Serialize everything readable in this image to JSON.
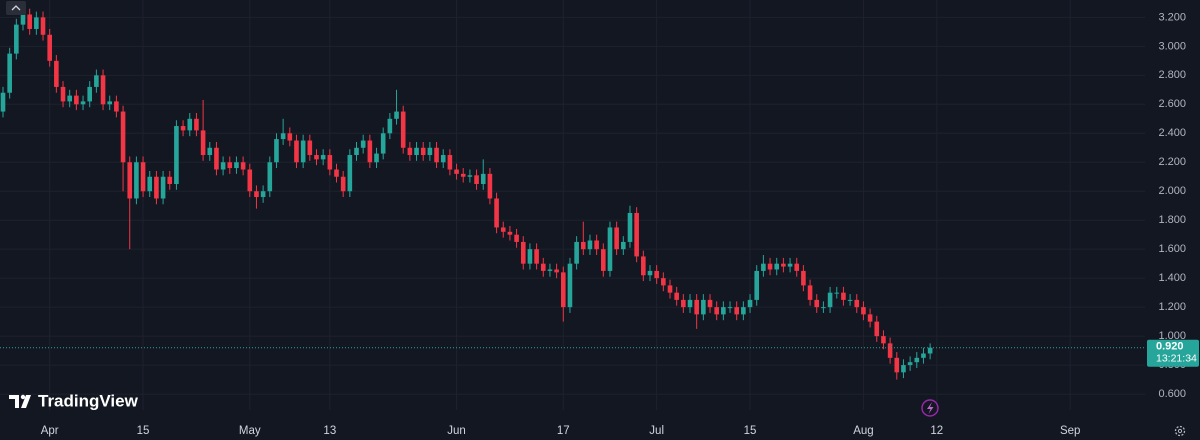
{
  "chart_data": {
    "type": "candlestick",
    "x": [
      "Mar 25",
      "Mar 26",
      "Mar 27",
      "Mar 28",
      "Mar 29",
      "Mar 30",
      "Mar 31",
      "Apr 1",
      "Apr 2",
      "Apr 3",
      "Apr 4",
      "Apr 5",
      "Apr 6",
      "Apr 7",
      "Apr 8",
      "Apr 9",
      "Apr 10",
      "Apr 11",
      "Apr 12",
      "Apr 13",
      "Apr 14",
      "Apr 15",
      "Apr 16",
      "Apr 17",
      "Apr 18",
      "Apr 19",
      "Apr 20",
      "Apr 21",
      "Apr 22",
      "Apr 23",
      "Apr 24",
      "Apr 25",
      "Apr 26",
      "Apr 27",
      "Apr 28",
      "Apr 29",
      "Apr 30",
      "May 1",
      "May 2",
      "May 3",
      "May 4",
      "May 5",
      "May 6",
      "May 7",
      "May 8",
      "May 9",
      "May 10",
      "May 11",
      "May 12",
      "May 13",
      "May 14",
      "May 15",
      "May 16",
      "May 17",
      "May 18",
      "May 19",
      "May 20",
      "May 21",
      "May 22",
      "May 23",
      "May 24",
      "May 25",
      "May 26",
      "May 27",
      "May 28",
      "May 29",
      "May 30",
      "May 31",
      "Jun 1",
      "Jun 2",
      "Jun 3",
      "Jun 4",
      "Jun 5",
      "Jun 6",
      "Jun 7",
      "Jun 8",
      "Jun 9",
      "Jun 10",
      "Jun 11",
      "Jun 12",
      "Jun 13",
      "Jun 14",
      "Jun 15",
      "Jun 16",
      "Jun 17",
      "Jun 18",
      "Jun 19",
      "Jun 20",
      "Jun 21",
      "Jun 22",
      "Jun 23",
      "Jun 24",
      "Jun 25",
      "Jun 26",
      "Jun 27",
      "Jun 28",
      "Jun 29",
      "Jun 30",
      "Jul 1",
      "Jul 2",
      "Jul 3",
      "Jul 4",
      "Jul 5",
      "Jul 6",
      "Jul 7",
      "Jul 8",
      "Jul 9",
      "Jul 10",
      "Jul 11",
      "Jul 12",
      "Jul 13",
      "Jul 14",
      "Jul 15",
      "Jul 16",
      "Jul 17",
      "Jul 18",
      "Jul 19",
      "Jul 20",
      "Jul 21",
      "Jul 22",
      "Jul 23",
      "Jul 24",
      "Jul 25",
      "Jul 26",
      "Jul 27",
      "Jul 28",
      "Jul 29",
      "Jul 30",
      "Jul 31",
      "Aug 1",
      "Aug 2",
      "Aug 3",
      "Aug 4",
      "Aug 5",
      "Aug 6",
      "Aug 7",
      "Aug 8",
      "Aug 9",
      "Aug 10",
      "Aug 11"
    ],
    "open": [
      2.55,
      2.68,
      2.95,
      3.15,
      3.22,
      3.12,
      3.2,
      3.08,
      2.9,
      2.72,
      2.62,
      2.66,
      2.6,
      2.62,
      2.72,
      2.8,
      2.6,
      2.62,
      2.55,
      2.2,
      1.95,
      2.2,
      2.0,
      2.1,
      1.95,
      2.1,
      2.05,
      2.45,
      2.42,
      2.5,
      2.42,
      2.25,
      2.3,
      2.15,
      2.2,
      2.16,
      2.2,
      2.15,
      2.0,
      1.96,
      2.0,
      2.2,
      2.36,
      2.4,
      2.35,
      2.2,
      2.35,
      2.25,
      2.22,
      2.25,
      2.15,
      2.1,
      2.0,
      2.25,
      2.3,
      2.35,
      2.2,
      2.26,
      2.4,
      2.5,
      2.55,
      2.3,
      2.25,
      2.3,
      2.25,
      2.3,
      2.2,
      2.25,
      2.15,
      2.12,
      2.1,
      2.11,
      2.05,
      2.12,
      1.95,
      1.75,
      1.72,
      1.7,
      1.65,
      1.5,
      1.6,
      1.5,
      1.45,
      1.46,
      1.44,
      1.2,
      1.5,
      1.65,
      1.6,
      1.66,
      1.6,
      1.45,
      1.75,
      1.6,
      1.65,
      1.85,
      1.55,
      1.42,
      1.45,
      1.4,
      1.35,
      1.3,
      1.25,
      1.2,
      1.25,
      1.15,
      1.25,
      1.2,
      1.15,
      1.2,
      1.2,
      1.15,
      1.2,
      1.25,
      1.45,
      1.5,
      1.46,
      1.5,
      1.48,
      1.5,
      1.45,
      1.35,
      1.25,
      1.2,
      1.2,
      1.3,
      1.3,
      1.25,
      1.25,
      1.2,
      1.15,
      1.1,
      1.0,
      0.95,
      0.85,
      0.75,
      0.8,
      0.82,
      0.85,
      0.88
    ],
    "high": [
      2.72,
      2.99,
      3.19,
      3.26,
      3.26,
      3.24,
      3.24,
      3.12,
      2.94,
      2.76,
      2.7,
      2.7,
      2.66,
      2.76,
      2.84,
      2.84,
      2.66,
      2.66,
      2.59,
      2.24,
      2.24,
      2.24,
      2.14,
      2.14,
      2.14,
      2.14,
      2.49,
      2.49,
      2.54,
      2.54,
      2.63,
      2.34,
      2.34,
      2.24,
      2.24,
      2.24,
      2.24,
      2.19,
      2.04,
      2.04,
      2.24,
      2.4,
      2.5,
      2.44,
      2.39,
      2.39,
      2.39,
      2.29,
      2.29,
      2.29,
      2.19,
      2.14,
      2.29,
      2.34,
      2.39,
      2.39,
      2.3,
      2.44,
      2.54,
      2.7,
      2.59,
      2.34,
      2.34,
      2.34,
      2.34,
      2.34,
      2.29,
      2.29,
      2.19,
      2.16,
      2.15,
      2.15,
      2.22,
      2.16,
      1.99,
      1.79,
      1.76,
      1.74,
      1.69,
      1.64,
      1.64,
      1.54,
      1.5,
      1.5,
      1.48,
      1.54,
      1.69,
      1.79,
      1.7,
      1.7,
      1.64,
      1.79,
      1.79,
      1.69,
      1.9,
      1.89,
      1.59,
      1.49,
      1.49,
      1.44,
      1.39,
      1.34,
      1.29,
      1.29,
      1.29,
      1.29,
      1.29,
      1.24,
      1.24,
      1.24,
      1.24,
      1.24,
      1.29,
      1.49,
      1.56,
      1.54,
      1.54,
      1.54,
      1.54,
      1.54,
      1.49,
      1.39,
      1.29,
      1.24,
      1.34,
      1.34,
      1.34,
      1.29,
      1.29,
      1.24,
      1.19,
      1.14,
      1.04,
      0.99,
      0.89,
      0.84,
      0.86,
      0.89,
      0.92,
      0.95
    ],
    "low": [
      2.51,
      2.64,
      2.91,
      3.11,
      3.08,
      3.08,
      3.04,
      2.86,
      2.68,
      2.58,
      2.58,
      2.56,
      2.56,
      2.58,
      2.68,
      2.56,
      2.56,
      2.51,
      2.0,
      1.6,
      1.91,
      1.96,
      1.96,
      1.91,
      1.91,
      2.01,
      2.01,
      2.38,
      2.38,
      2.38,
      2.21,
      2.21,
      2.11,
      2.11,
      2.12,
      2.12,
      2.11,
      1.96,
      1.88,
      1.92,
      1.96,
      2.16,
      2.32,
      2.31,
      2.16,
      2.16,
      2.21,
      2.18,
      2.18,
      2.11,
      2.06,
      1.96,
      1.96,
      2.21,
      2.26,
      2.16,
      2.16,
      2.22,
      2.36,
      2.46,
      2.26,
      2.21,
      2.21,
      2.21,
      2.21,
      2.16,
      2.16,
      2.11,
      2.08,
      2.06,
      2.06,
      2.01,
      2.01,
      1.91,
      1.71,
      1.68,
      1.66,
      1.61,
      1.46,
      1.46,
      1.46,
      1.41,
      1.41,
      1.4,
      1.1,
      1.16,
      1.46,
      1.56,
      1.56,
      1.56,
      1.41,
      1.41,
      1.56,
      1.56,
      1.61,
      1.51,
      1.38,
      1.38,
      1.36,
      1.31,
      1.26,
      1.21,
      1.16,
      1.16,
      1.05,
      1.11,
      1.16,
      1.11,
      1.11,
      1.16,
      1.11,
      1.11,
      1.16,
      1.21,
      1.41,
      1.42,
      1.42,
      1.44,
      1.44,
      1.41,
      1.31,
      1.21,
      1.16,
      1.16,
      1.16,
      1.26,
      1.21,
      1.21,
      1.16,
      1.11,
      1.06,
      0.96,
      0.91,
      0.81,
      0.7,
      0.71,
      0.76,
      0.78,
      0.81,
      0.84
    ],
    "close": [
      2.68,
      2.95,
      3.15,
      3.22,
      3.12,
      3.2,
      3.08,
      2.9,
      2.72,
      2.62,
      2.66,
      2.6,
      2.62,
      2.72,
      2.8,
      2.6,
      2.62,
      2.55,
      2.2,
      1.95,
      2.2,
      2.0,
      2.1,
      1.95,
      2.1,
      2.05,
      2.45,
      2.42,
      2.5,
      2.42,
      2.25,
      2.3,
      2.15,
      2.2,
      2.16,
      2.2,
      2.15,
      2.0,
      1.96,
      2.0,
      2.2,
      2.36,
      2.4,
      2.35,
      2.2,
      2.35,
      2.25,
      2.22,
      2.25,
      2.15,
      2.1,
      2.0,
      2.25,
      2.3,
      2.35,
      2.2,
      2.26,
      2.4,
      2.5,
      2.55,
      2.3,
      2.25,
      2.3,
      2.25,
      2.3,
      2.2,
      2.25,
      2.15,
      2.12,
      2.1,
      2.11,
      2.05,
      2.12,
      1.95,
      1.75,
      1.72,
      1.7,
      1.65,
      1.5,
      1.6,
      1.5,
      1.45,
      1.46,
      1.44,
      1.2,
      1.5,
      1.65,
      1.6,
      1.66,
      1.6,
      1.45,
      1.75,
      1.6,
      1.65,
      1.85,
      1.55,
      1.42,
      1.45,
      1.4,
      1.35,
      1.3,
      1.25,
      1.2,
      1.25,
      1.15,
      1.25,
      1.2,
      1.15,
      1.2,
      1.2,
      1.15,
      1.2,
      1.25,
      1.45,
      1.5,
      1.46,
      1.5,
      1.48,
      1.5,
      1.45,
      1.35,
      1.25,
      1.2,
      1.2,
      1.3,
      1.3,
      1.25,
      1.25,
      1.2,
      1.15,
      1.1,
      1.0,
      0.95,
      0.85,
      0.75,
      0.8,
      0.82,
      0.85,
      0.88,
      0.92
    ],
    "up_color": "#26a69a",
    "down_color": "#f23645",
    "ylim": [
      0.49,
      3.32
    ],
    "yticks": [
      {
        "value": 3.2,
        "label": "3.200"
      },
      {
        "value": 3.0,
        "label": "3.000"
      },
      {
        "value": 2.8,
        "label": "2.800"
      },
      {
        "value": 2.6,
        "label": "2.600"
      },
      {
        "value": 2.4,
        "label": "2.400"
      },
      {
        "value": 2.2,
        "label": "2.200"
      },
      {
        "value": 2.0,
        "label": "2.000"
      },
      {
        "value": 1.8,
        "label": "1.800"
      },
      {
        "value": 1.6,
        "label": "1.600"
      },
      {
        "value": 1.4,
        "label": "1.400"
      },
      {
        "value": 1.2,
        "label": "1.200"
      },
      {
        "value": 1.0,
        "label": "1.000"
      },
      {
        "value": 0.8,
        "label": "0.800"
      },
      {
        "value": 0.6,
        "label": "0.600"
      }
    ],
    "xticks": [
      {
        "value": "Apr 1",
        "label": "Apr"
      },
      {
        "value": "Apr 15",
        "label": "15"
      },
      {
        "value": "May 1",
        "label": "May"
      },
      {
        "value": "May 13",
        "label": "13"
      },
      {
        "value": "Jun 1",
        "label": "Jun"
      },
      {
        "value": "Jun 17",
        "label": "17"
      },
      {
        "value": "Jul 1",
        "label": "Jul"
      },
      {
        "value": "Jul 15",
        "label": "15"
      },
      {
        "value": "Aug 1",
        "label": "Aug"
      },
      {
        "value": "Aug 12",
        "label": "12"
      },
      {
        "value": "Sep 1",
        "label": "Sep"
      }
    ],
    "grid": true,
    "last_price": {
      "value": 0.92,
      "label": "0.920"
    },
    "countdown": "13:21:34",
    "watermark": "TradingView"
  }
}
